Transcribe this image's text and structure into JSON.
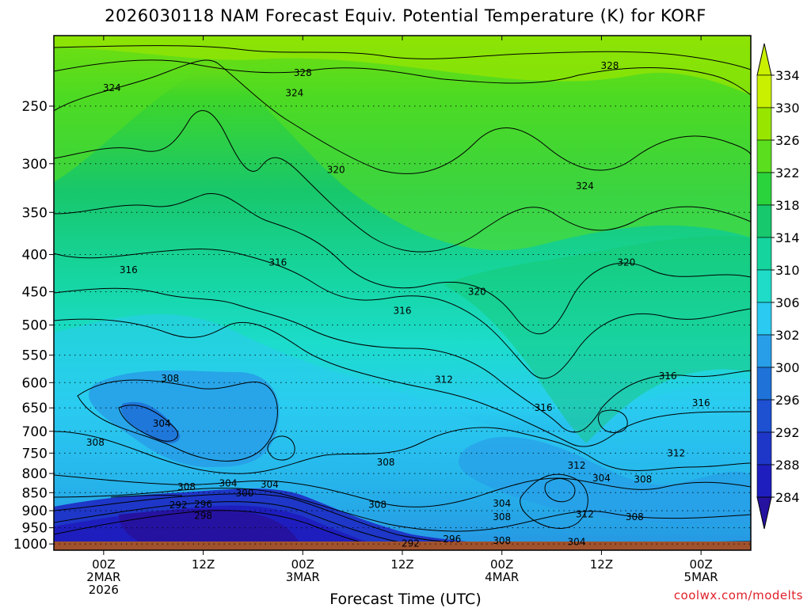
{
  "chart_data": {
    "type": "heatmap",
    "title": "2026030118 NAM Forecast Equiv. Potential Temperature (K) for KORF",
    "xlabel": "Forecast Time (UTC)",
    "ylabel": "",
    "x_ticks": [
      {
        "t": 6,
        "label": [
          "00Z",
          "2MAR",
          "2026"
        ]
      },
      {
        "t": 18,
        "label": [
          "12Z"
        ]
      },
      {
        "t": 30,
        "label": [
          "00Z",
          "3MAR"
        ]
      },
      {
        "t": 42,
        "label": [
          "12Z"
        ]
      },
      {
        "t": 54,
        "label": [
          "00Z",
          "4MAR"
        ]
      },
      {
        "t": 66,
        "label": [
          "12Z"
        ]
      },
      {
        "t": 78,
        "label": [
          "00Z",
          "5MAR"
        ]
      }
    ],
    "xlim_hours": [
      0,
      84
    ],
    "y_ticks": [
      250,
      300,
      350,
      400,
      450,
      500,
      550,
      600,
      650,
      700,
      750,
      800,
      850,
      900,
      950,
      1000
    ],
    "ylim_hpa": [
      200,
      1020
    ],
    "colorbar": {
      "labels": [
        334,
        330,
        326,
        322,
        318,
        314,
        310,
        306,
        302,
        300,
        296,
        292,
        288,
        284
      ],
      "colors": [
        "#c8f000",
        "#98e600",
        "#5ade1e",
        "#2ad23c",
        "#17c86c",
        "#16d49e",
        "#1edcc8",
        "#2bcaf0",
        "#289ee8",
        "#1e72d8",
        "#1e50d2",
        "#1e37c8",
        "#1e1ebe",
        "#2612a0"
      ]
    },
    "contour_labels": [
      {
        "t": 30,
        "p": 225,
        "text": "328"
      },
      {
        "t": 67,
        "p": 220,
        "text": "328"
      },
      {
        "t": 7,
        "p": 236,
        "text": "324"
      },
      {
        "t": 29,
        "p": 240,
        "text": "324"
      },
      {
        "t": 64,
        "p": 322,
        "text": "324"
      },
      {
        "t": 34,
        "p": 306,
        "text": "320"
      },
      {
        "t": 51,
        "p": 450,
        "text": "320"
      },
      {
        "t": 69,
        "p": 410,
        "text": "320"
      },
      {
        "t": 9,
        "p": 420,
        "text": "316"
      },
      {
        "t": 27,
        "p": 410,
        "text": "316"
      },
      {
        "t": 42,
        "p": 478,
        "text": "316"
      },
      {
        "t": 59,
        "p": 650,
        "text": "316"
      },
      {
        "t": 74,
        "p": 588,
        "text": "316"
      },
      {
        "t": 78,
        "p": 640,
        "text": "316"
      },
      {
        "t": 14,
        "p": 592,
        "text": "308"
      },
      {
        "t": 5,
        "p": 725,
        "text": "308"
      },
      {
        "t": 40,
        "p": 772,
        "text": "308"
      },
      {
        "t": 16,
        "p": 835,
        "text": "308"
      },
      {
        "t": 39,
        "p": 883,
        "text": "308"
      },
      {
        "t": 54,
        "p": 918,
        "text": "308"
      },
      {
        "t": 71,
        "p": 815,
        "text": "308"
      },
      {
        "t": 70,
        "p": 918,
        "text": "308"
      },
      {
        "t": 54,
        "p": 990,
        "text": "308"
      },
      {
        "t": 13,
        "p": 683,
        "text": "304"
      },
      {
        "t": 21,
        "p": 825,
        "text": "304"
      },
      {
        "t": 26,
        "p": 828,
        "text": "304"
      },
      {
        "t": 66,
        "p": 812,
        "text": "304"
      },
      {
        "t": 54,
        "p": 880,
        "text": "304"
      },
      {
        "t": 63,
        "p": 994,
        "text": "304"
      },
      {
        "t": 23,
        "p": 852,
        "text": "300"
      },
      {
        "t": 63,
        "p": 780,
        "text": "312"
      },
      {
        "t": 75,
        "p": 750,
        "text": "312"
      },
      {
        "t": 64,
        "p": 910,
        "text": "312"
      },
      {
        "t": 47,
        "p": 594,
        "text": "312"
      },
      {
        "t": 15,
        "p": 884,
        "text": "292"
      },
      {
        "t": 18,
        "p": 882,
        "text": "296"
      },
      {
        "t": 18,
        "p": 915,
        "text": "298"
      },
      {
        "t": 43,
        "p": 998,
        "text": "292"
      },
      {
        "t": 48,
        "p": 985,
        "text": "296"
      }
    ],
    "grid": true,
    "legend": "right"
  },
  "credit": "coolwx.com/modelts"
}
